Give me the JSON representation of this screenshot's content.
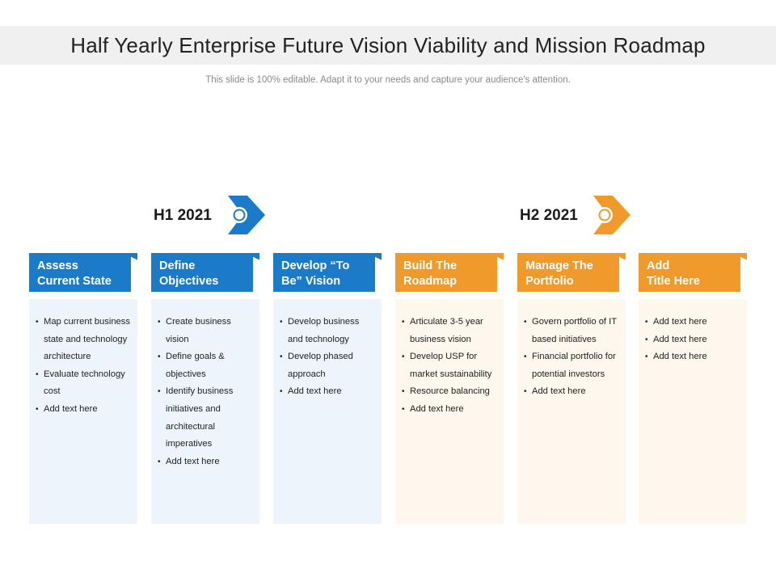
{
  "title": "Half Yearly Enterprise Future Vision Viability and Mission Roadmap",
  "subtitle": "This slide is 100% editable. Adapt it to your needs and capture your audience's attention.",
  "halves": [
    {
      "label": "H1 2021",
      "color": "#1b7bc9",
      "icon": "chevron-arrow-icon"
    },
    {
      "label": "H2 2021",
      "color": "#ef9a2a",
      "icon": "chevron-arrow-icon"
    }
  ],
  "colors": {
    "blue": "#1b7bc9",
    "orange": "#ef9a2a",
    "blue_panel": "#eef4fb",
    "orange_panel": "#fdf7ee"
  },
  "columns": [
    {
      "title_line1": "Assess",
      "title_line2": "Current State",
      "items": [
        "Map current business state and technology architecture",
        "Evaluate technology cost",
        "Add text here"
      ]
    },
    {
      "title_line1": "Define",
      "title_line2": "Objectives",
      "items": [
        "Create business vision",
        "Define goals & objectives",
        "Identify business initiatives and architectural imperatives",
        "Add text here"
      ]
    },
    {
      "title_line1": "Develop “To",
      "title_line2": "Be” Vision",
      "items": [
        "Develop business and technology",
        "Develop phased approach",
        "Add text here"
      ]
    },
    {
      "title_line1": "Build The",
      "title_line2": "Roadmap",
      "items": [
        "Articulate 3-5 year business vision",
        "Develop USP for market sustainability",
        "Resource balancing",
        "Add text here"
      ]
    },
    {
      "title_line1": "Manage The",
      "title_line2": "Portfolio",
      "items": [
        "Govern portfolio of IT based initiatives",
        "Financial portfolio for potential investors",
        "Add text here"
      ]
    },
    {
      "title_line1": "Add",
      "title_line2": "Title Here",
      "items": [
        "Add text here",
        "Add text here",
        "Add text here"
      ]
    }
  ]
}
